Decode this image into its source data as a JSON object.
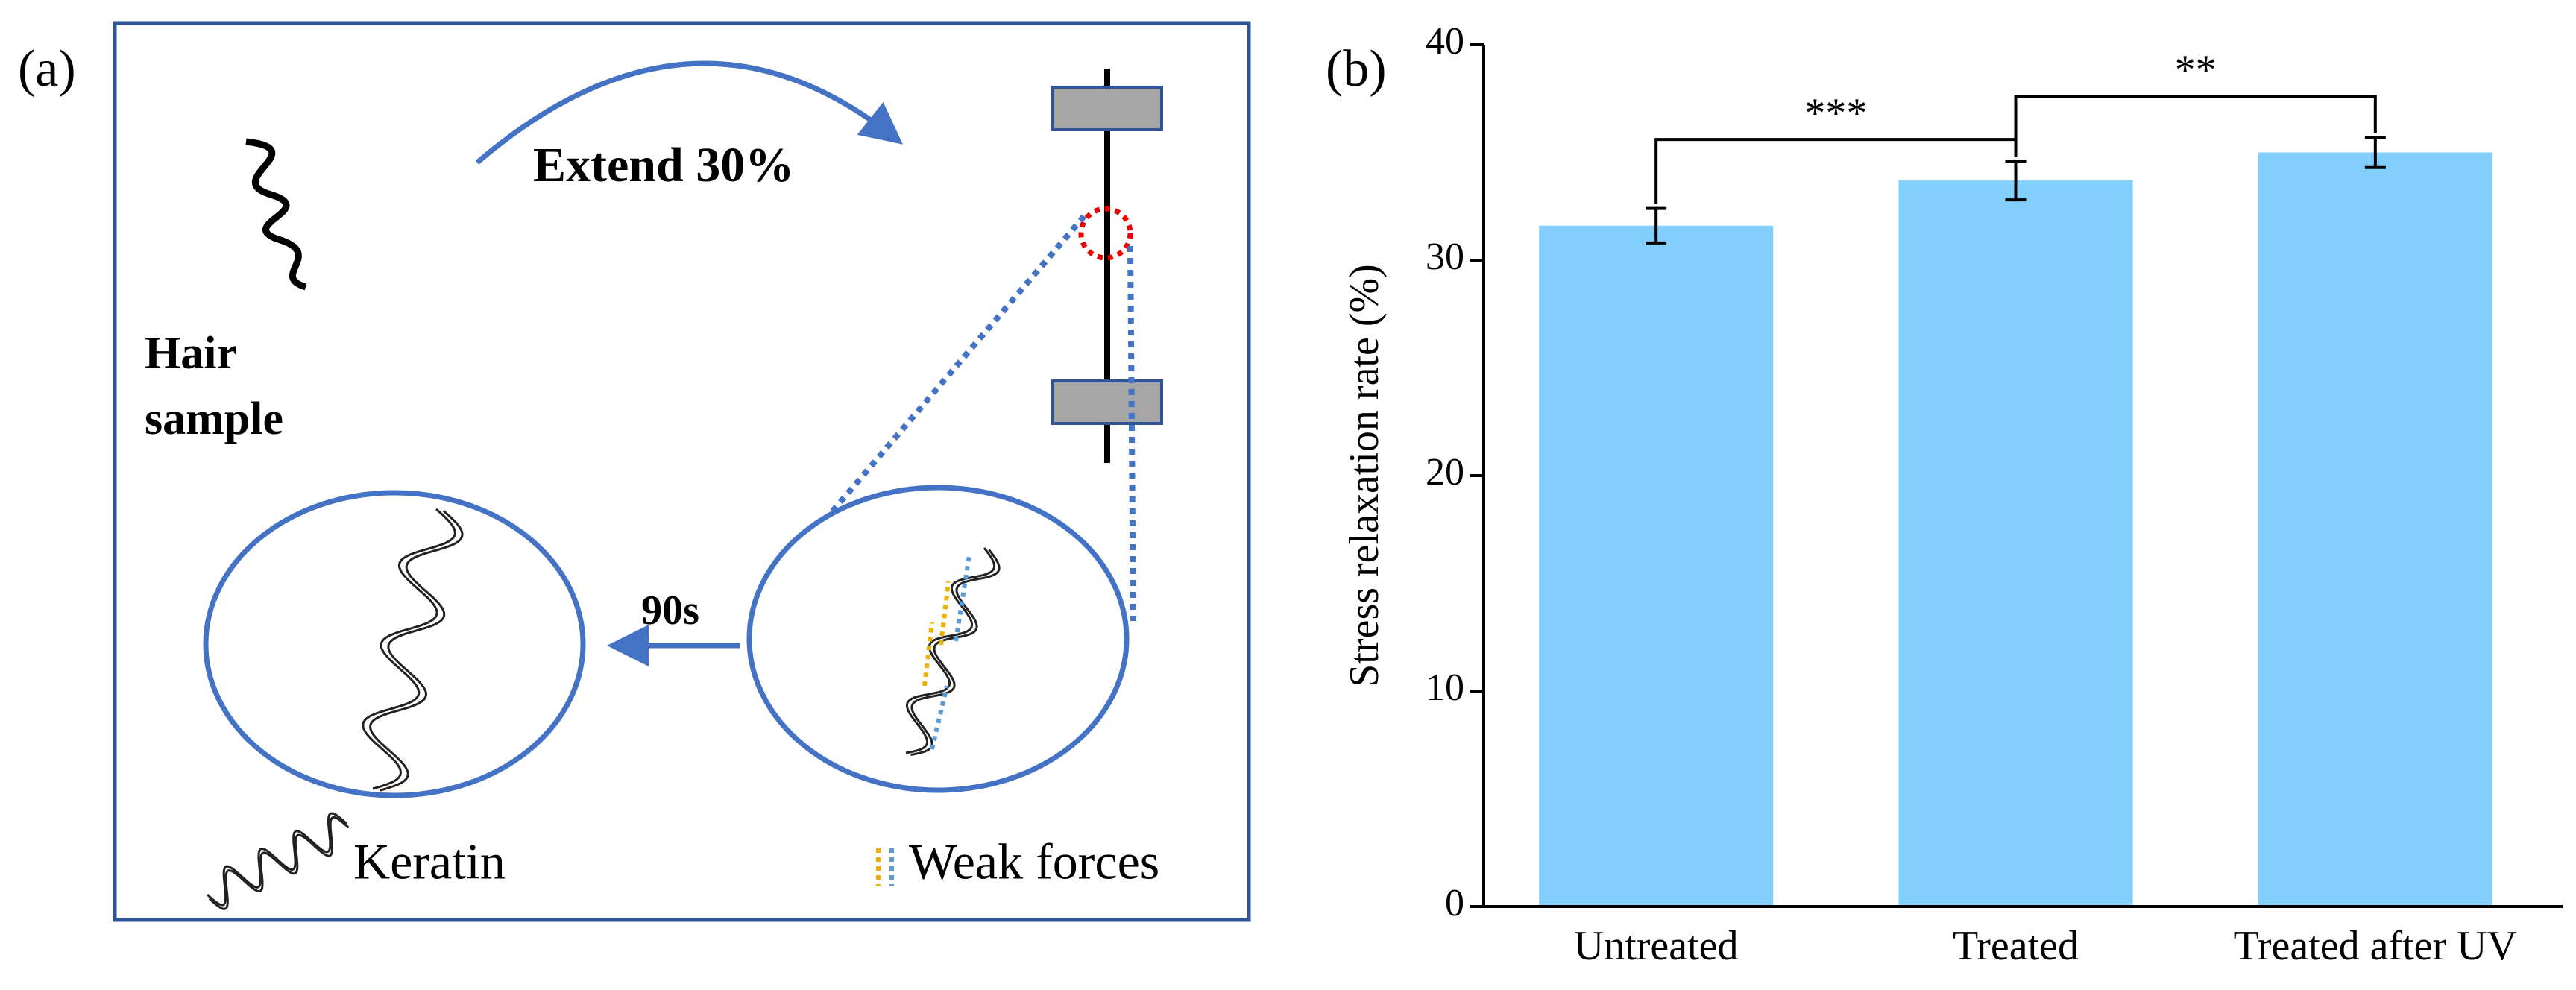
{
  "panel_a": {
    "label": "(a)",
    "stretch": "Extend 30%",
    "sample": [
      "Hair",
      "sample"
    ],
    "time": "90s",
    "legend": [
      "Keratin",
      "Weak forces"
    ]
  },
  "chart_data": {
    "type": "bar",
    "label": "(b)",
    "y_label": "Stress relaxation rate (%)",
    "categories": [
      "Untreated",
      "Treated",
      "Treated after UV"
    ],
    "values": [
      31.6,
      33.7,
      35.0
    ],
    "errors": [
      0.8,
      0.9,
      0.7
    ],
    "color": "#82cffd",
    "ylim": [
      0,
      40
    ],
    "yticks": [
      0,
      10,
      20,
      30,
      40
    ],
    "annotations": [
      {
        "text": "***",
        "y": 35.6
      },
      {
        "text": "**",
        "y": 37.6
      }
    ]
  }
}
